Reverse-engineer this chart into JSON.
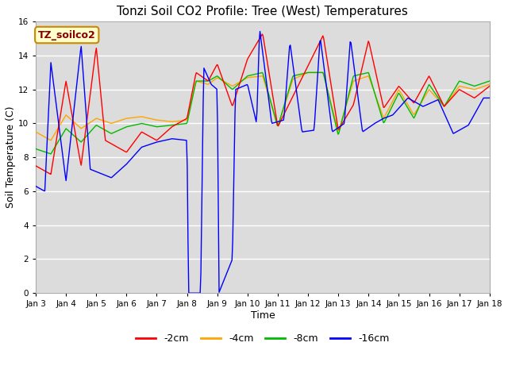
{
  "title": "Tonzi Soil CO2 Profile: Tree (West) Temperatures",
  "xlabel": "Time",
  "ylabel": "Soil Temperature (C)",
  "ylim": [
    0,
    16
  ],
  "yticks": [
    0,
    2,
    4,
    6,
    8,
    10,
    12,
    14,
    16
  ],
  "legend_label": "TZ_soilco2",
  "series_labels": [
    "-2cm",
    "-4cm",
    "-8cm",
    "-16cm"
  ],
  "series_colors": [
    "#ff0000",
    "#ffa500",
    "#00bb00",
    "#0000ff"
  ],
  "background_color": "#dcdcdc",
  "n_points": 600,
  "xtick_labels": [
    "Jan 3",
    "Jan 4",
    "Jan 5",
    "Jan 6",
    "Jan 7",
    "Jan 8",
    "Jan 9",
    "Jan 10",
    "Jan 11",
    "Jan 12",
    "Jan 13",
    "Jan 14",
    "Jan 15",
    "Jan 16",
    "Jan 17",
    "Jan 18"
  ]
}
